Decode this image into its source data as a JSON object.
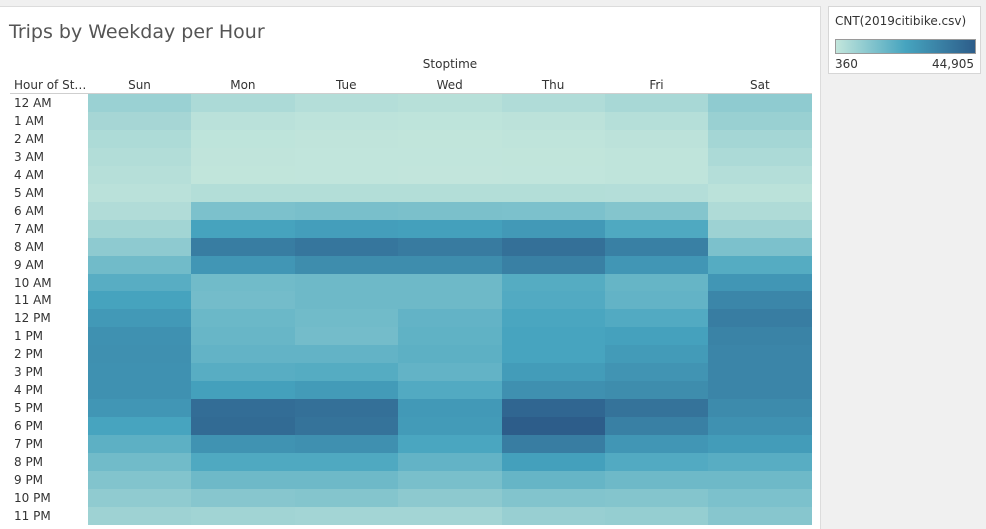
{
  "chart_data": {
    "type": "heatmap",
    "title": "Trips by Weekday per Hour",
    "column_group_label": "Stoptime",
    "row_header": "Hour of Sta..",
    "columns": [
      "Sun",
      "Mon",
      "Tue",
      "Wed",
      "Thu",
      "Fri",
      "Sat"
    ],
    "rows": [
      "12 AM",
      "1 AM",
      "2 AM",
      "3 AM",
      "4 AM",
      "5 AM",
      "6 AM",
      "7 AM",
      "8 AM",
      "9 AM",
      "10 AM",
      "11 AM",
      "12 PM",
      "1 PM",
      "2 PM",
      "3 PM",
      "4 PM",
      "5 PM",
      "6 PM",
      "7 PM",
      "8 PM",
      "9 PM",
      "10 PM",
      "11 PM"
    ],
    "values": [
      [
        7600,
        4500,
        3000,
        2500,
        3800,
        5200,
        9600
      ],
      [
        5600,
        2000,
        1400,
        1200,
        1600,
        2800,
        7800
      ],
      [
        4200,
        1200,
        900,
        800,
        1000,
        1600,
        5800
      ],
      [
        3400,
        900,
        700,
        700,
        800,
        1100,
        4400
      ],
      [
        2600,
        800,
        700,
        600,
        700,
        1000,
        3000
      ],
      [
        2000,
        3200,
        3200,
        3200,
        3200,
        3000,
        1800
      ],
      [
        3600,
        13000,
        13500,
        13200,
        13000,
        11500,
        4000
      ],
      [
        6200,
        23000,
        24500,
        24000,
        26000,
        21000,
        7200
      ],
      [
        9800,
        35000,
        37000,
        35500,
        39000,
        34000,
        13000
      ],
      [
        15000,
        27000,
        30000,
        30000,
        34000,
        27000,
        20000
      ],
      [
        19500,
        15000,
        15500,
        15500,
        20000,
        17000,
        27000
      ],
      [
        23000,
        14500,
        15500,
        15500,
        20500,
        17500,
        32000
      ],
      [
        26000,
        16000,
        15000,
        17500,
        22000,
        20500,
        35000
      ],
      [
        28500,
        16500,
        14500,
        18000,
        22500,
        23500,
        33000
      ],
      [
        29000,
        17500,
        17500,
        18500,
        22500,
        25500,
        32500
      ],
      [
        28500,
        19500,
        20000,
        17500,
        25000,
        27500,
        32500
      ],
      [
        28500,
        24000,
        25500,
        20500,
        29000,
        30000,
        32500
      ],
      [
        27000,
        40000,
        39000,
        26000,
        42000,
        38000,
        30500
      ],
      [
        22500,
        40500,
        38000,
        25500,
        44905,
        34000,
        28500
      ],
      [
        18500,
        28000,
        29000,
        22000,
        35000,
        27000,
        25000
      ],
      [
        15000,
        21000,
        21000,
        17500,
        24000,
        20500,
        19500
      ],
      [
        12000,
        15500,
        15500,
        13500,
        17000,
        15500,
        15500
      ],
      [
        9500,
        11000,
        11500,
        10000,
        12000,
        11500,
        13000
      ],
      [
        7000,
        6500,
        6000,
        6000,
        8000,
        8500,
        11000
      ]
    ],
    "color_scale": {
      "min": 360,
      "max": 44905,
      "min_label": "360",
      "max_label": "44,905",
      "colors": [
        "#c3e6dc",
        "#46a4bf",
        "#2d5d8a"
      ]
    },
    "legend": {
      "title": "CNT(2019citibike.csv)",
      "placement": "top-right"
    }
  }
}
